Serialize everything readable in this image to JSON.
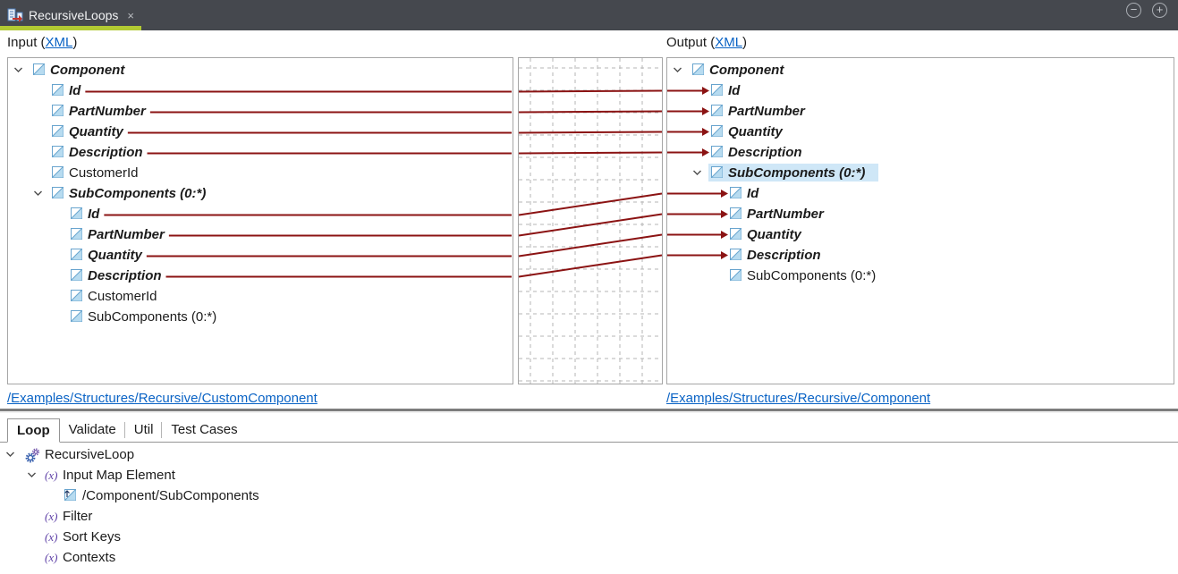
{
  "window": {
    "tab_title": "RecursiveLoops",
    "close_glyph": "×",
    "zoom_out_glyph": "−",
    "zoom_in_glyph": "+"
  },
  "headers": {
    "input_prefix": "Input (",
    "output_prefix": "Output (",
    "xml_link": "XML",
    "suffix": ")"
  },
  "colors": {
    "mapping_line": "#8b1313",
    "link": "#0a63c5",
    "tab_underline": "#b2ca33",
    "selection": "#cfe7f7",
    "grid": "#b5b5b5"
  },
  "input_tree": {
    "footer_link": "/Examples/Structures/Recursive/CustomComponent",
    "nodes": [
      {
        "label": "Component",
        "depth": 0,
        "mapped": true,
        "expanded": true
      },
      {
        "label": "Id",
        "depth": 1,
        "mapped": true,
        "line": true
      },
      {
        "label": "PartNumber",
        "depth": 1,
        "mapped": true,
        "line": true
      },
      {
        "label": "Quantity",
        "depth": 1,
        "mapped": true,
        "line": true
      },
      {
        "label": "Description",
        "depth": 1,
        "mapped": true,
        "line": true
      },
      {
        "label": "CustomerId",
        "depth": 1,
        "mapped": false
      },
      {
        "label": "SubComponents (0:*)",
        "depth": 1,
        "mapped": true,
        "expanded": true
      },
      {
        "label": "Id",
        "depth": 2,
        "mapped": true,
        "line": true
      },
      {
        "label": "PartNumber",
        "depth": 2,
        "mapped": true,
        "line": true
      },
      {
        "label": "Quantity",
        "depth": 2,
        "mapped": true,
        "line": true
      },
      {
        "label": "Description",
        "depth": 2,
        "mapped": true,
        "line": true
      },
      {
        "label": "CustomerId",
        "depth": 2,
        "mapped": false
      },
      {
        "label": "SubComponents (0:*)",
        "depth": 2,
        "mapped": false
      }
    ]
  },
  "output_tree": {
    "footer_link": "/Examples/Structures/Recursive/Component",
    "nodes": [
      {
        "label": "Component",
        "depth": 0,
        "mapped": true,
        "expanded": true
      },
      {
        "label": "Id",
        "depth": 1,
        "mapped": true,
        "arrow": true
      },
      {
        "label": "PartNumber",
        "depth": 1,
        "mapped": true,
        "arrow": true
      },
      {
        "label": "Quantity",
        "depth": 1,
        "mapped": true,
        "arrow": true
      },
      {
        "label": "Description",
        "depth": 1,
        "mapped": true,
        "arrow": true
      },
      {
        "label": "SubComponents (0:*)",
        "depth": 1,
        "mapped": true,
        "expanded": true,
        "selected": true
      },
      {
        "label": "Id",
        "depth": 2,
        "mapped": true,
        "arrow": true
      },
      {
        "label": "PartNumber",
        "depth": 2,
        "mapped": true,
        "arrow": true
      },
      {
        "label": "Quantity",
        "depth": 2,
        "mapped": true,
        "arrow": true
      },
      {
        "label": "Description",
        "depth": 2,
        "mapped": true,
        "arrow": true
      },
      {
        "label": "SubComponents (0:*)",
        "depth": 2,
        "mapped": false
      }
    ]
  },
  "connections": [
    {
      "from": 1,
      "to": 1
    },
    {
      "from": 2,
      "to": 2
    },
    {
      "from": 3,
      "to": 3
    },
    {
      "from": 4,
      "to": 4
    },
    {
      "from": 7,
      "to": 6
    },
    {
      "from": 8,
      "to": 7
    },
    {
      "from": 9,
      "to": 8
    },
    {
      "from": 10,
      "to": 9
    }
  ],
  "bottom": {
    "tabs": [
      {
        "label": "Loop",
        "active": true
      },
      {
        "label": "Validate",
        "active": false
      },
      {
        "label": "Util",
        "active": false
      },
      {
        "label": "Test Cases",
        "active": false
      }
    ],
    "tree": [
      {
        "label": "RecursiveLoop",
        "depth": 0,
        "icon": "gears",
        "expanded": true
      },
      {
        "label": "Input Map Element",
        "depth": 1,
        "icon": "fx",
        "expanded": true
      },
      {
        "label": "/Component/SubComponents",
        "depth": 2,
        "icon": "node-arrow"
      },
      {
        "label": "Filter",
        "depth": 1,
        "icon": "fx"
      },
      {
        "label": "Sort Keys",
        "depth": 1,
        "icon": "fx"
      },
      {
        "label": "Contexts",
        "depth": 1,
        "icon": "fx"
      }
    ]
  }
}
